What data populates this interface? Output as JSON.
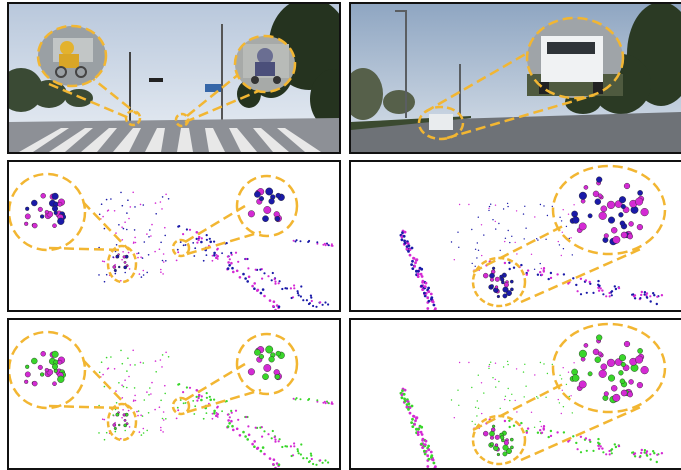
{
  "figure": {
    "rows": [
      "camera-image",
      "point-cloud-two-colors",
      "point-cloud-three-colors"
    ],
    "colors": {
      "callout": "#f2b632",
      "points_blue": "#1a1aa8",
      "points_magenta": "#d42ad4",
      "points_green": "#39d62a",
      "border": "#111111"
    },
    "scenes": [
      {
        "id": "scene-cyclists",
        "description_icons": [
          "cyclist-icon",
          "motorcyclist-icon"
        ]
      },
      {
        "id": "scene-suv",
        "description_icons": [
          "suv-car-icon"
        ]
      }
    ]
  }
}
